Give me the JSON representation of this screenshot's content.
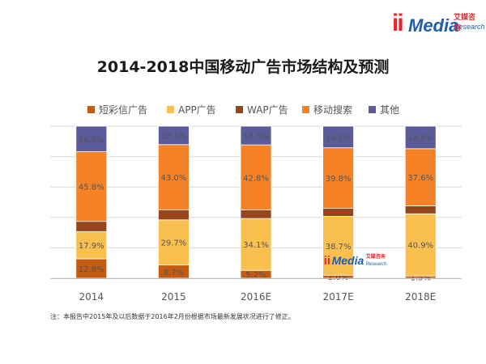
{
  "logo": {
    "mark": "ii",
    "name": "Media",
    "cn": "艾媒咨询",
    "en": "Research"
  },
  "chart_data": {
    "type": "bar",
    "stacked": true,
    "title": "2014-2018中国移动广告市场结构及预测",
    "categories": [
      "2014",
      "2015",
      "2016E",
      "2017E",
      "2018E"
    ],
    "series": [
      {
        "name": "短彩信广告",
        "color": "#c55a11",
        "values": [
          12.8,
          8.7,
          5.2,
          2.0,
          1.5
        ],
        "labels": [
          "12.8%",
          "8.7%",
          "5.2%",
          "2.0%",
          "1.5%"
        ]
      },
      {
        "name": "APP广告",
        "color": "#f9c04f",
        "values": [
          17.9,
          29.7,
          34.1,
          38.7,
          40.9
        ],
        "labels": [
          "17.9%",
          "29.7%",
          "34.1%",
          "38.7%",
          "40.9%"
        ]
      },
      {
        "name": "WAP广告",
        "color": "#96451c",
        "values": [
          6.7,
          6.5,
          5.6,
          5.3,
          5.2
        ],
        "labels": [
          "",
          "",
          "",
          "",
          ""
        ]
      },
      {
        "name": "移动搜索",
        "color": "#f58226",
        "values": [
          45.8,
          43.0,
          42.8,
          39.8,
          37.6
        ],
        "labels": [
          "45.8%",
          "43.0%",
          "42.8%",
          "39.8%",
          "37.6%"
        ]
      },
      {
        "name": "其他",
        "color": "#5b5a9a",
        "values": [
          16.8,
          12.1,
          12.3,
          14.2,
          14.8
        ],
        "labels": [
          "16.8%",
          "12.1%",
          "12.3%",
          "14.2%",
          "14.8%"
        ]
      }
    ],
    "ylim": [
      0,
      100
    ],
    "grid": true,
    "legend": "top"
  },
  "footnote": "注：本报告中2015年及以后数据于2016年2月份根据市场最新发展状况进行了修正。"
}
